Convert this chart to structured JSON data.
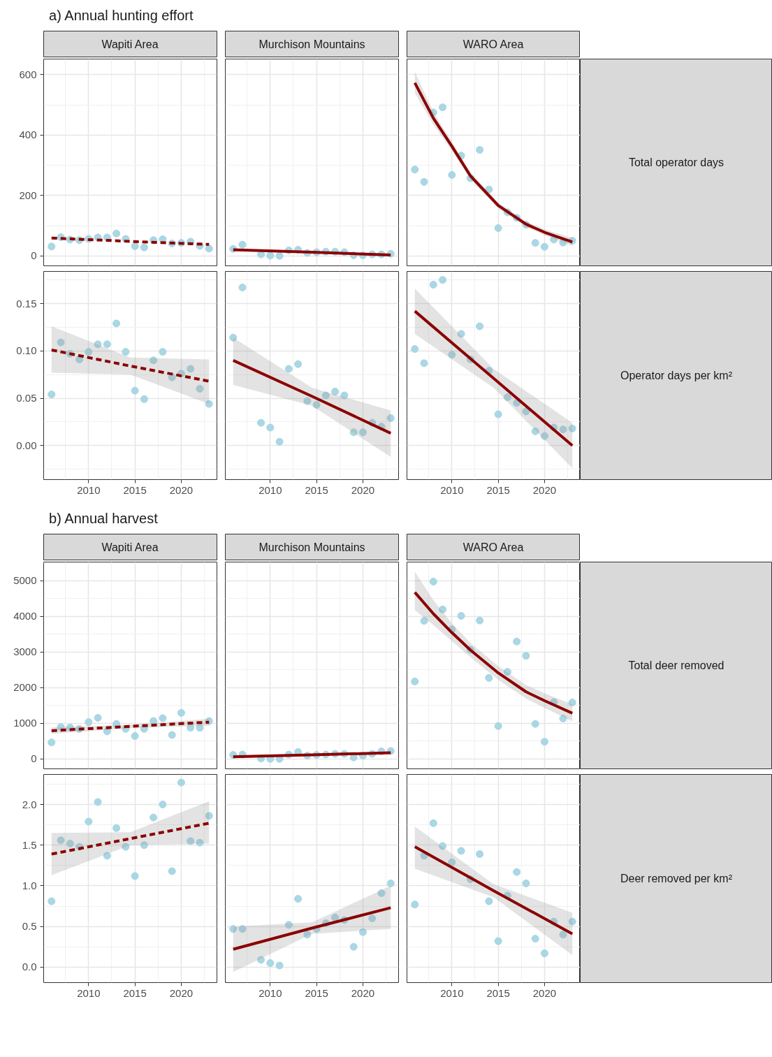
{
  "chart_data": [
    {
      "type": "scatter",
      "title": "Wapiti Area",
      "annotations": [
        "a) Annual hunting effort"
      ],
      "x": [
        2006,
        2007,
        2008,
        2009,
        2010,
        2011,
        2012,
        2013,
        2014,
        2015,
        2016,
        2017,
        2018,
        2019,
        2020,
        2021,
        2022,
        2023
      ],
      "xlim": [
        2005.15,
        2023.85
      ],
      "xticks": [
        2010,
        2015,
        2020
      ],
      "ylim": [
        -33,
        652
      ],
      "yticks": [
        0,
        200,
        400,
        600
      ],
      "grid": true,
      "tick_labels": "y",
      "series": [
        {
          "color": "#a5d5e3",
          "marker": "circle",
          "values": [
            31,
            62,
            54,
            52,
            56,
            61,
            61,
            74,
            56,
            32,
            28,
            52,
            55,
            41,
            43,
            47,
            33,
            24
          ]
        },
        {
          "type": "line",
          "marker": "none",
          "color": "#8b0000",
          "line_style": "dashed",
          "x": [
            2006,
            2014.5,
            2023
          ],
          "values": [
            59,
            48,
            38
          ]
        }
      ]
    },
    {
      "type": "scatter",
      "title": "Murchison Mountains",
      "x": [
        2006,
        2007,
        2008,
        2009,
        2010,
        2011,
        2012,
        2013,
        2014,
        2015,
        2016,
        2017,
        2018,
        2019,
        2020,
        2021,
        2022,
        2023
      ],
      "xlim": [
        2005.15,
        2023.85
      ],
      "xticks": [
        2010,
        2015,
        2020
      ],
      "ylim": [
        -33,
        652
      ],
      "yticks": [
        0,
        200,
        400,
        600
      ],
      "grid": true,
      "tick_labels": false,
      "series": [
        {
          "color": "#a5d5e3",
          "marker": "circle",
          "values": [
            23,
            37,
            null,
            5,
            1,
            0,
            18,
            20,
            10,
            12,
            14,
            14,
            12,
            2,
            2,
            5,
            5,
            7
          ]
        },
        {
          "type": "line",
          "marker": "none",
          "color": "#8b0000",
          "line_style": "solid",
          "x": [
            2006,
            2014.5,
            2023
          ],
          "values": [
            20,
            12,
            3
          ]
        }
      ]
    },
    {
      "type": "scatter",
      "title": "WARO Area",
      "y2label": "Total operator days",
      "x": [
        2006,
        2007,
        2008,
        2009,
        2010,
        2011,
        2012,
        2013,
        2014,
        2015,
        2016,
        2017,
        2018,
        2019,
        2020,
        2021,
        2022,
        2023
      ],
      "xlim": [
        2005.15,
        2023.85
      ],
      "xticks": [
        2010,
        2015,
        2020
      ],
      "ylim": [
        -33,
        652
      ],
      "yticks": [
        0,
        200,
        400,
        600
      ],
      "grid": true,
      "tick_labels": false,
      "series": [
        {
          "color": "#a5d5e3",
          "marker": "circle",
          "values": [
            286,
            245,
            475,
            492,
            268,
            332,
            257,
            351,
            220,
            92,
            144,
            126,
            103,
            43,
            30,
            54,
            44,
            50
          ]
        },
        {
          "type": "line",
          "marker": "none",
          "color": "#8b0000",
          "line_style": "solid",
          "x": [
            2006,
            2008,
            2010,
            2012,
            2015,
            2018,
            2020,
            2023
          ],
          "values": [
            573,
            456,
            363,
            265,
            167,
            105,
            78,
            46
          ],
          "lower": [
            540,
            435,
            348,
            253,
            157,
            96,
            68,
            33
          ],
          "upper": [
            610,
            477,
            378,
            277,
            177,
            114,
            88,
            59
          ]
        }
      ]
    },
    {
      "type": "scatter",
      "x": [
        2006,
        2007,
        2008,
        2009,
        2010,
        2011,
        2012,
        2013,
        2014,
        2015,
        2016,
        2017,
        2018,
        2019,
        2020,
        2021,
        2022,
        2023
      ],
      "xlim": [
        2005.15,
        2023.85
      ],
      "xticks": [
        2010,
        2015,
        2020
      ],
      "ylim": [
        -0.036,
        0.184
      ],
      "yticks": [
        {
          "value": 0,
          "label": "0.00"
        },
        {
          "value": 0.05,
          "label": "0.05"
        },
        {
          "value": 0.1,
          "label": "0.10"
        },
        {
          "value": 0.15,
          "label": "0.15"
        }
      ],
      "grid": true,
      "series": [
        {
          "color": "#a5d5e3",
          "marker": "circle",
          "values": [
            0.054,
            0.109,
            0.097,
            0.091,
            0.099,
            0.107,
            0.107,
            0.129,
            0.099,
            0.058,
            0.049,
            0.09,
            0.099,
            0.072,
            0.076,
            0.081,
            0.06,
            0.044
          ]
        },
        {
          "type": "line",
          "marker": "none",
          "color": "#8b0000",
          "line_style": "dashed",
          "x": [
            2006,
            2014.5,
            2023
          ],
          "values": [
            0.101,
            0.084,
            0.068
          ],
          "lower": [
            0.077,
            0.075,
            0.044
          ],
          "upper": [
            0.126,
            0.093,
            0.091
          ]
        }
      ]
    },
    {
      "type": "scatter",
      "x": [
        2006,
        2007,
        2008,
        2009,
        2010,
        2011,
        2012,
        2013,
        2014,
        2015,
        2016,
        2017,
        2018,
        2019,
        2020,
        2021,
        2022,
        2023
      ],
      "xlim": [
        2005.15,
        2023.85
      ],
      "xticks": [
        2010,
        2015,
        2020
      ],
      "ylim": [
        -0.036,
        0.184
      ],
      "yticks": [
        0,
        0.05,
        0.1,
        0.15
      ],
      "grid": true,
      "tick_labels": "x",
      "series": [
        {
          "color": "#a5d5e3",
          "marker": "circle",
          "values": [
            0.114,
            0.167,
            null,
            0.024,
            0.019,
            0.004,
            0.081,
            0.086,
            0.047,
            0.043,
            0.053,
            0.057,
            0.053,
            0.014,
            0.014,
            0.024,
            0.02,
            0.029
          ]
        },
        {
          "type": "line",
          "marker": "none",
          "color": "#8b0000",
          "line_style": "solid",
          "x": [
            2006,
            2014.5,
            2023
          ],
          "values": [
            0.09,
            0.052,
            0.013
          ],
          "lower": [
            0.064,
            0.042,
            -0.012
          ],
          "upper": [
            0.114,
            0.061,
            0.037
          ]
        }
      ]
    },
    {
      "type": "scatter",
      "y2label": "Operator days per km²",
      "x": [
        2006,
        2007,
        2008,
        2009,
        2010,
        2011,
        2012,
        2013,
        2014,
        2015,
        2016,
        2017,
        2018,
        2019,
        2020,
        2021,
        2022,
        2023
      ],
      "xlim": [
        2005.15,
        2023.85
      ],
      "xticks": [
        2010,
        2015,
        2020
      ],
      "ylim": [
        -0.036,
        0.184
      ],
      "yticks": [
        0,
        0.05,
        0.1,
        0.15
      ],
      "grid": true,
      "tick_labels": "x",
      "series": [
        {
          "color": "#a5d5e3",
          "marker": "circle",
          "values": [
            0.102,
            0.087,
            0.17,
            0.175,
            0.096,
            0.118,
            0.091,
            0.126,
            0.079,
            0.033,
            0.051,
            0.045,
            0.036,
            0.015,
            0.01,
            0.019,
            0.017,
            0.018
          ]
        },
        {
          "type": "line",
          "marker": "none",
          "color": "#8b0000",
          "line_style": "solid",
          "x": [
            2006,
            2014.5,
            2023
          ],
          "values": [
            0.142,
            0.071,
            0.0
          ],
          "lower": [
            0.118,
            0.061,
            -0.024
          ],
          "upper": [
            0.166,
            0.081,
            0.024
          ]
        }
      ]
    },
    {
      "type": "scatter",
      "title": "Wapiti Area",
      "annotations": [
        "b) Annual harvest"
      ],
      "x": [
        2006,
        2007,
        2008,
        2009,
        2010,
        2011,
        2012,
        2013,
        2014,
        2015,
        2016,
        2017,
        2018,
        2019,
        2020,
        2021,
        2022,
        2023
      ],
      "xlim": [
        2005.15,
        2023.85
      ],
      "xticks": [
        2010,
        2015,
        2020
      ],
      "ylim": [
        -280,
        5520
      ],
      "yticks": [
        0,
        1000,
        2000,
        3000,
        4000,
        5000
      ],
      "grid": true,
      "tick_labels": "y",
      "series": [
        {
          "color": "#a5d5e3",
          "marker": "circle",
          "values": [
            460,
            890,
            880,
            840,
            1030,
            1150,
            770,
            980,
            840,
            640,
            840,
            1060,
            1140,
            670,
            1290,
            870,
            870,
            1060
          ]
        },
        {
          "type": "line",
          "marker": "none",
          "color": "#8b0000",
          "line_style": "dashed",
          "x": [
            2006,
            2014.5,
            2023
          ],
          "values": [
            790,
            910,
            1030
          ],
          "lower": [
            700,
            860,
            930
          ],
          "upper": [
            880,
            960,
            1120
          ]
        }
      ]
    },
    {
      "type": "scatter",
      "title": "Murchison Mountains",
      "x": [
        2006,
        2007,
        2008,
        2009,
        2010,
        2011,
        2012,
        2013,
        2014,
        2015,
        2016,
        2017,
        2018,
        2019,
        2020,
        2021,
        2022,
        2023
      ],
      "xlim": [
        2005.15,
        2023.85
      ],
      "xticks": [
        2010,
        2015,
        2020
      ],
      "ylim": [
        -280,
        5520
      ],
      "yticks": [
        0,
        1000,
        2000,
        3000,
        4000,
        5000
      ],
      "grid": true,
      "tick_labels": false,
      "series": [
        {
          "color": "#a5d5e3",
          "marker": "circle",
          "values": [
            110,
            120,
            null,
            10,
            0,
            0,
            120,
            190,
            90,
            110,
            120,
            140,
            140,
            40,
            90,
            140,
            210,
            220
          ]
        },
        {
          "type": "line",
          "marker": "none",
          "color": "#8b0000",
          "line_style": "solid",
          "x": [
            2006,
            2014.5,
            2023
          ],
          "values": [
            60,
            110,
            170
          ],
          "lower": [
            20,
            90,
            120
          ],
          "upper": [
            100,
            140,
            210
          ]
        }
      ]
    },
    {
      "type": "scatter",
      "title": "WARO Area",
      "y2label": "Total deer removed",
      "x": [
        2006,
        2007,
        2008,
        2009,
        2010,
        2011,
        2012,
        2013,
        2014,
        2015,
        2016,
        2017,
        2018,
        2019,
        2020,
        2021,
        2022,
        2023
      ],
      "xlim": [
        2005.15,
        2023.85
      ],
      "xticks": [
        2010,
        2015,
        2020
      ],
      "ylim": [
        -280,
        5520
      ],
      "yticks": [
        0,
        1000,
        2000,
        3000,
        4000,
        5000
      ],
      "grid": true,
      "tick_labels": false,
      "series": [
        {
          "color": "#a5d5e3",
          "marker": "circle",
          "values": [
            2170,
            3870,
            4970,
            4190,
            3630,
            4010,
            3060,
            3880,
            2270,
            920,
            2440,
            3290,
            2890,
            980,
            480,
            1590,
            1130,
            1580
          ]
        },
        {
          "type": "line",
          "marker": "none",
          "color": "#8b0000",
          "line_style": "solid",
          "x": [
            2006,
            2008,
            2010,
            2012,
            2015,
            2018,
            2020,
            2023
          ],
          "values": [
            4670,
            4070,
            3540,
            3050,
            2410,
            1880,
            1630,
            1280
          ],
          "lower": [
            4170,
            3750,
            3300,
            2850,
            2220,
            1690,
            1430,
            1050
          ],
          "upper": [
            5250,
            4450,
            3800,
            3250,
            2600,
            2070,
            1840,
            1530
          ]
        }
      ]
    },
    {
      "type": "scatter",
      "x": [
        2006,
        2007,
        2008,
        2009,
        2010,
        2011,
        2012,
        2013,
        2014,
        2015,
        2016,
        2017,
        2018,
        2019,
        2020,
        2021,
        2022,
        2023
      ],
      "xlim": [
        2005.15,
        2023.85
      ],
      "xticks": [
        2010,
        2015,
        2020
      ],
      "ylim": [
        -0.19,
        2.37
      ],
      "yticks": [
        {
          "value": 0,
          "label": "0.0"
        },
        {
          "value": 0.5,
          "label": "0.5"
        },
        {
          "value": 1,
          "label": "1.0"
        },
        {
          "value": 1.5,
          "label": "1.5"
        },
        {
          "value": 2,
          "label": "2.0"
        }
      ],
      "grid": true,
      "series": [
        {
          "color": "#a5d5e3",
          "marker": "circle",
          "values": [
            0.81,
            1.56,
            1.52,
            1.48,
            1.79,
            2.03,
            1.37,
            1.71,
            1.48,
            1.12,
            1.5,
            1.84,
            2.0,
            1.18,
            2.27,
            1.55,
            1.53,
            1.86
          ]
        },
        {
          "type": "line",
          "marker": "none",
          "color": "#8b0000",
          "line_style": "dashed",
          "x": [
            2006,
            2014.5,
            2023
          ],
          "values": [
            1.39,
            1.58,
            1.77
          ],
          "lower": [
            1.13,
            1.5,
            1.52
          ],
          "upper": [
            1.65,
            1.66,
            2.04
          ]
        }
      ]
    },
    {
      "type": "scatter",
      "x": [
        2006,
        2007,
        2008,
        2009,
        2010,
        2011,
        2012,
        2013,
        2014,
        2015,
        2016,
        2017,
        2018,
        2019,
        2020,
        2021,
        2022,
        2023
      ],
      "xlim": [
        2005.15,
        2023.85
      ],
      "xticks": [
        2010,
        2015,
        2020
      ],
      "ylim": [
        -0.19,
        2.37
      ],
      "yticks": [
        0,
        0.5,
        1,
        1.5,
        2
      ],
      "grid": true,
      "tick_labels": "x",
      "series": [
        {
          "color": "#a5d5e3",
          "marker": "circle",
          "values": [
            0.47,
            0.47,
            null,
            0.09,
            0.05,
            0.02,
            0.52,
            0.84,
            0.4,
            0.47,
            0.54,
            0.61,
            0.58,
            0.25,
            0.43,
            0.6,
            0.91,
            1.03
          ]
        },
        {
          "type": "line",
          "marker": "none",
          "color": "#8b0000",
          "line_style": "solid",
          "x": [
            2006,
            2014.5,
            2023
          ],
          "values": [
            0.22,
            0.48,
            0.73
          ],
          "lower": [
            -0.06,
            0.41,
            0.47
          ],
          "upper": [
            0.5,
            0.55,
            1.0
          ]
        }
      ]
    },
    {
      "type": "scatter",
      "y2label": "Deer removed per km²",
      "x": [
        2006,
        2007,
        2008,
        2009,
        2010,
        2011,
        2012,
        2013,
        2014,
        2015,
        2016,
        2017,
        2018,
        2019,
        2020,
        2021,
        2022,
        2023
      ],
      "xlim": [
        2005.15,
        2023.85
      ],
      "xticks": [
        2010,
        2015,
        2020
      ],
      "ylim": [
        -0.19,
        2.37
      ],
      "yticks": [
        0,
        0.5,
        1,
        1.5,
        2
      ],
      "grid": true,
      "tick_labels": "x",
      "series": [
        {
          "color": "#a5d5e3",
          "marker": "circle",
          "values": [
            0.77,
            1.37,
            1.77,
            1.49,
            1.29,
            1.43,
            1.08,
            1.39,
            0.81,
            0.32,
            0.88,
            1.17,
            1.03,
            0.35,
            0.17,
            0.56,
            0.4,
            0.56
          ]
        },
        {
          "type": "line",
          "marker": "none",
          "color": "#8b0000",
          "line_style": "solid",
          "x": [
            2006,
            2014.5,
            2023
          ],
          "values": [
            1.48,
            0.94,
            0.41
          ],
          "lower": [
            1.21,
            0.86,
            0.15
          ],
          "upper": [
            1.73,
            1.02,
            0.67
          ]
        }
      ]
    }
  ]
}
